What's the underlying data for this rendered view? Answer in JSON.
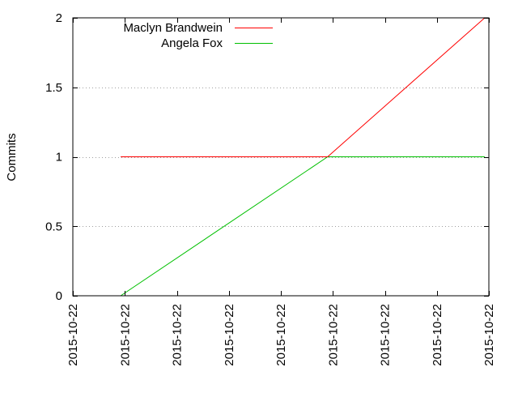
{
  "chart_data": {
    "type": "line",
    "title": "",
    "xlabel": "",
    "ylabel": "Commits",
    "x_tick_labels": [
      "2015-10-22",
      "2015-10-22",
      "2015-10-22",
      "2015-10-22",
      "2015-10-22",
      "2015-10-22",
      "2015-10-22",
      "2015-10-22",
      "2015-10-22"
    ],
    "y_ticks": [
      0,
      0.5,
      1,
      1.5,
      2
    ],
    "y_tick_labels": [
      "0",
      "0.5",
      "1",
      "1.5",
      "2"
    ],
    "ylim": [
      0,
      2
    ],
    "x_range": [
      0,
      8
    ],
    "grid": {
      "y": true,
      "x": false,
      "style": "dotted"
    },
    "legend": {
      "placement": "top-left"
    },
    "series": [
      {
        "name": "Maclyn Brandwein",
        "color": "#ff0000",
        "points": [
          [
            0.92,
            1
          ],
          [
            4.9,
            1
          ],
          [
            7.92,
            2
          ]
        ]
      },
      {
        "name": "Angela Fox",
        "color": "#00c000",
        "points": [
          [
            0.92,
            0
          ],
          [
            4.9,
            1
          ],
          [
            7.92,
            1
          ]
        ]
      }
    ]
  }
}
